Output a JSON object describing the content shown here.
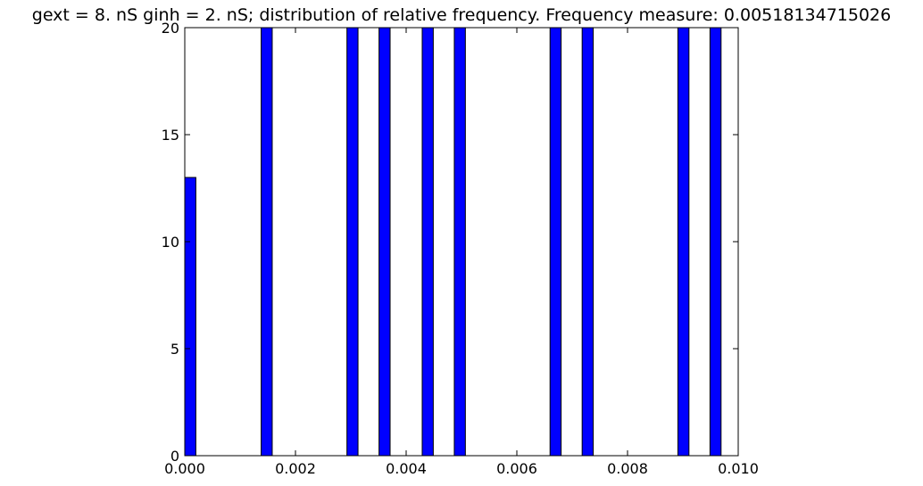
{
  "chart_data": {
    "type": "bar",
    "title": "gext = 8. nS ginh = 2. nS; distribution of relative frequency. Frequency measure: 0.00518134715026",
    "xlabel": "",
    "ylabel": "",
    "xlim": [
      0.0,
      0.01
    ],
    "ylim": [
      0,
      20
    ],
    "x_ticks": [
      "0.000",
      "0.002",
      "0.004",
      "0.006",
      "0.008",
      "0.010"
    ],
    "y_ticks": [
      "0",
      "5",
      "10",
      "15",
      "20"
    ],
    "grid": false,
    "bar_color": "#0000ff",
    "bars": [
      {
        "x0": 0.0,
        "x1": 0.0002,
        "value": 13
      },
      {
        "x0": 0.00138,
        "x1": 0.00158,
        "value": 20
      },
      {
        "x0": 0.00293,
        "x1": 0.00313,
        "value": 20
      },
      {
        "x0": 0.00351,
        "x1": 0.00371,
        "value": 20
      },
      {
        "x0": 0.00429,
        "x1": 0.00449,
        "value": 20
      },
      {
        "x0": 0.00487,
        "x1": 0.00507,
        "value": 20
      },
      {
        "x0": 0.0066,
        "x1": 0.0068,
        "value": 20
      },
      {
        "x0": 0.00718,
        "x1": 0.00738,
        "value": 20
      },
      {
        "x0": 0.00891,
        "x1": 0.00911,
        "value": 20
      },
      {
        "x0": 0.00949,
        "x1": 0.00969,
        "value": 20
      }
    ]
  }
}
